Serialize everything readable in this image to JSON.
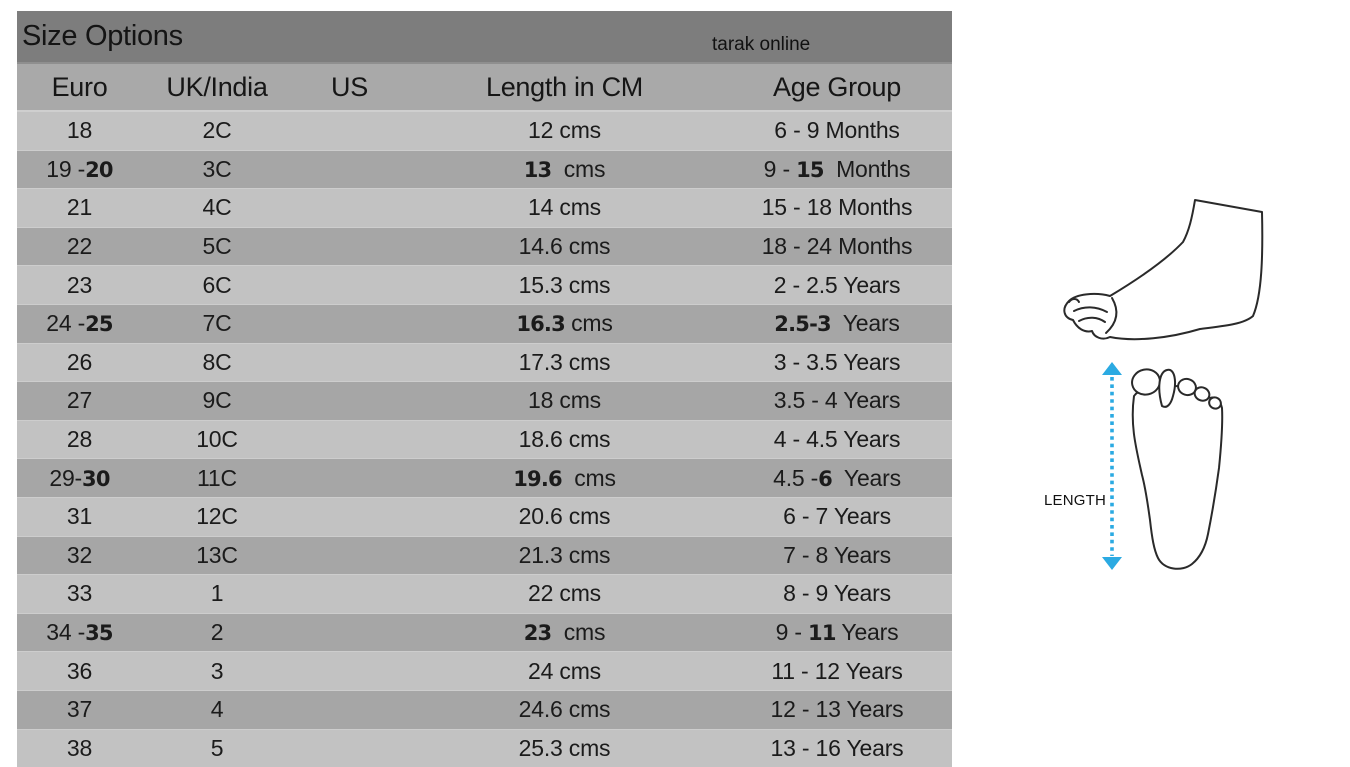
{
  "title_bar": {
    "title": "Size Options",
    "brand": "tarak online",
    "bg": "#7d7d7d"
  },
  "table": {
    "columns": [
      "Euro",
      "UK/India",
      "US",
      "Length in CM",
      "Age Group"
    ],
    "header_bg": "#a9a9a9",
    "row_light_bg": "#c2c2c2",
    "row_dark_bg": "#a6a6a6",
    "rows": [
      [
        "18",
        "2C",
        "",
        "12 cms",
        "6 - 9 Months"
      ],
      [
        [
          "19 -",
          {
            "t": "20",
            "alt": true
          }
        ],
        "3C",
        "",
        [
          {
            "t": "13",
            "alt": true
          },
          "  cms"
        ],
        [
          "9 - ",
          {
            "t": "15",
            "alt": true
          },
          "  Months"
        ]
      ],
      [
        "21",
        "4C",
        "",
        "14 cms",
        "15 - 18 Months"
      ],
      [
        "22",
        "5C",
        "",
        "14.6 cms",
        "18 - 24 Months"
      ],
      [
        "23",
        "6C",
        "",
        "15.3 cms",
        "2 - 2.5 Years"
      ],
      [
        [
          "24 -",
          {
            "t": "25",
            "alt": true
          }
        ],
        "7C",
        "",
        [
          {
            "t": "16.3",
            "alt": true
          },
          " cms"
        ],
        [
          {
            "t": "2.5-3",
            "alt": true
          },
          "  Years"
        ]
      ],
      [
        "26",
        "8C",
        "",
        "17.3 cms",
        "3 - 3.5 Years"
      ],
      [
        "27",
        "9C",
        "",
        "18 cms",
        "3.5 - 4 Years"
      ],
      [
        "28",
        "10C",
        "",
        "18.6 cms",
        "4 - 4.5 Years"
      ],
      [
        [
          "29-",
          {
            "t": "30",
            "alt": true
          }
        ],
        "11C",
        "",
        [
          {
            "t": "19.6",
            "alt": true
          },
          "  cms"
        ],
        [
          "4.5 -",
          {
            "t": "6",
            "alt": true
          },
          "  Years"
        ]
      ],
      [
        "31",
        "12C",
        "",
        "20.6 cms",
        "6 - 7 Years"
      ],
      [
        "32",
        "13C",
        "",
        "21.3 cms",
        "7 - 8 Years"
      ],
      [
        "33",
        "1",
        "",
        "22 cms",
        "8 - 9 Years"
      ],
      [
        [
          "34 -",
          {
            "t": "35",
            "alt": true
          }
        ],
        "2",
        "",
        [
          {
            "t": "23",
            "alt": true
          },
          "  cms"
        ],
        [
          "9 - ",
          {
            "t": "11",
            "alt": true
          },
          " Years"
        ]
      ],
      [
        "36",
        "3",
        "",
        "24 cms",
        "11 - 12 Years"
      ],
      [
        "37",
        "4",
        "",
        "24.6 cms",
        "12 - 13 Years"
      ],
      [
        "38",
        "5",
        "",
        "25.3 cms",
        "13 - 16 Years"
      ]
    ]
  },
  "diagram": {
    "length_label": "LENGTH",
    "arrow_color": "#2baae2",
    "outline_color": "#2a2a2a"
  }
}
